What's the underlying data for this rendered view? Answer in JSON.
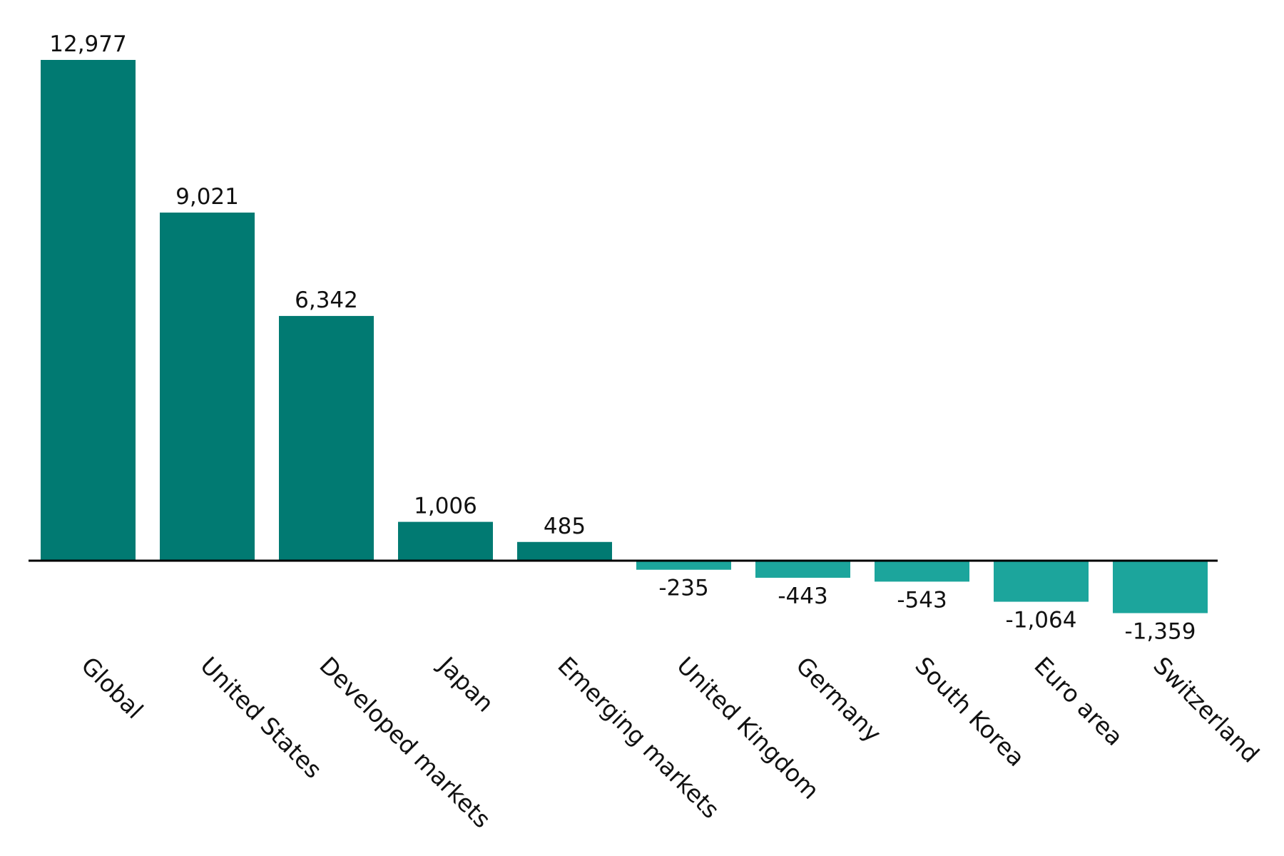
{
  "chart_data": {
    "type": "bar",
    "title": "",
    "xlabel": "",
    "ylabel": "",
    "categories": [
      "Global",
      "United States",
      "Developed markets",
      "Japan",
      "Emerging markets",
      "United Kingdom",
      "Germany",
      "South Korea",
      "Euro area",
      "Switzerland"
    ],
    "values": [
      12977,
      9021,
      6342,
      1006,
      485,
      -235,
      -443,
      -543,
      -1064,
      -1359
    ],
    "value_labels": [
      "12,977",
      "9,021",
      "6,342",
      "1,006",
      "485",
      "-235",
      "-443",
      "-543",
      "-1,064",
      "-1,359"
    ],
    "ylim": [
      -1359,
      12977
    ],
    "grid": false,
    "legend": "none",
    "colors": {
      "positive": "#017A72",
      "negative": "#1CA59C",
      "axis": "#000000"
    }
  }
}
